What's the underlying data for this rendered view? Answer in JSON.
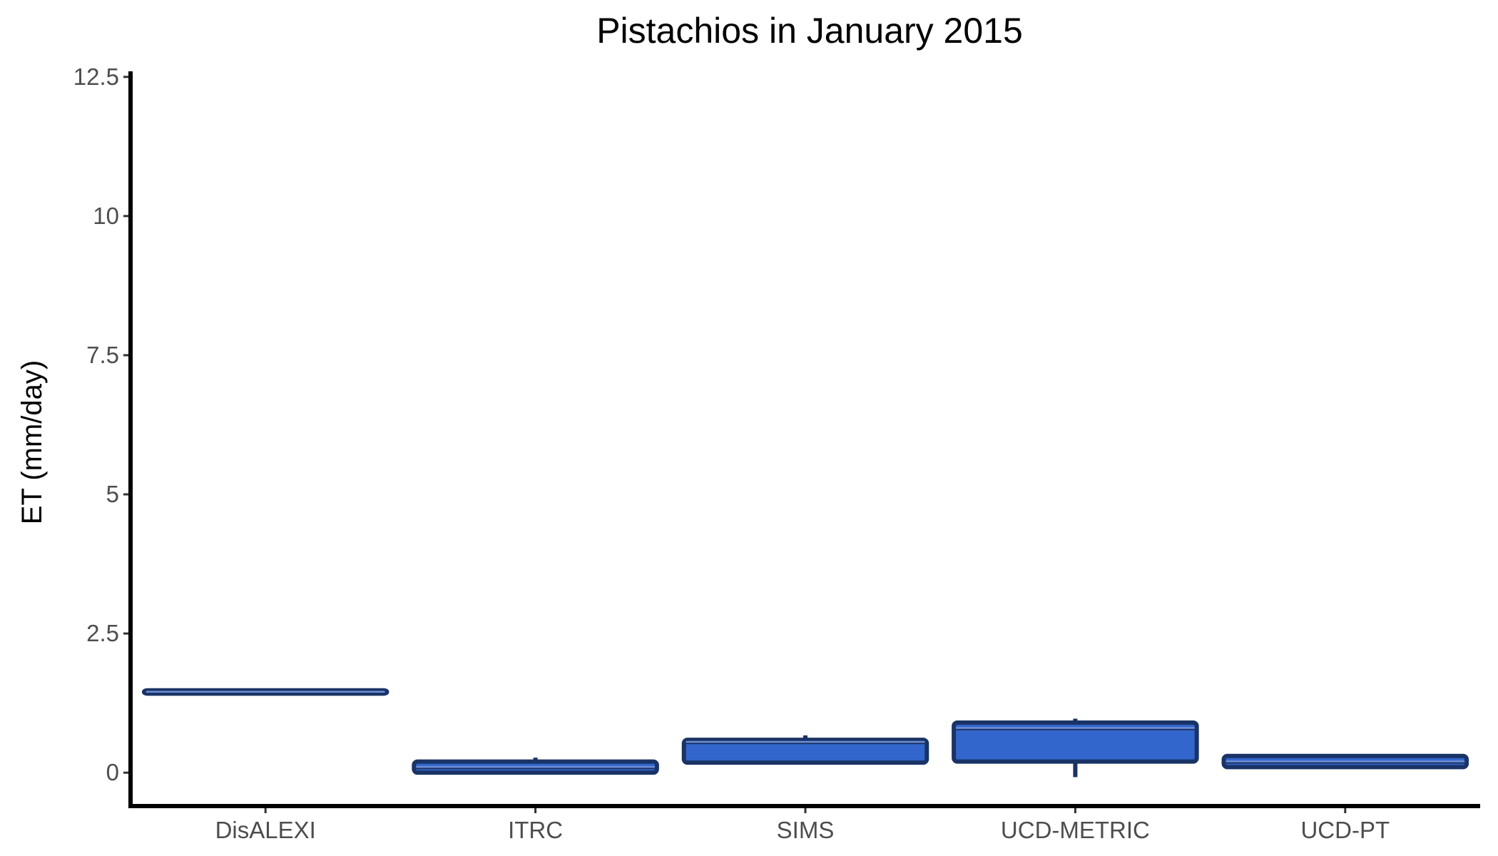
{
  "chart_data": {
    "type": "boxplot",
    "title": "Pistachios in January 2015",
    "xlabel": "",
    "ylabel": "ET (mm/day)",
    "ylim": [
      -0.6,
      12.6
    ],
    "yticks": [
      0,
      2.5,
      5,
      7.5,
      10,
      12.5
    ],
    "ytick_labels": [
      "0",
      "2.5",
      "5",
      "7.5",
      "10",
      "12.5"
    ],
    "grid": false,
    "legend": "none",
    "categories": [
      "DisALEXI",
      "ITRC",
      "SIMS",
      "UCD-METRIC",
      "UCD-PT"
    ],
    "boxes": [
      {
        "category": "DisALEXI",
        "whisker_low": 1.42,
        "q1": 1.42,
        "median": 1.45,
        "q3": 1.48,
        "whisker_high": 1.48
      },
      {
        "category": "ITRC",
        "whisker_low": 0.0,
        "q1": 0.0,
        "median": 0.1,
        "q3": 0.2,
        "whisker_high": 0.27
      },
      {
        "category": "SIMS",
        "whisker_low": 0.18,
        "q1": 0.18,
        "median": 0.55,
        "q3": 0.59,
        "whisker_high": 0.67
      },
      {
        "category": "UCD-METRIC",
        "whisker_low": -0.08,
        "q1": 0.2,
        "median": 0.8,
        "q3": 0.9,
        "whisker_high": 0.97
      },
      {
        "category": "UCD-PT",
        "whisker_low": 0.1,
        "q1": 0.1,
        "median": 0.2,
        "q3": 0.3,
        "whisker_high": 0.3
      }
    ],
    "colors": {
      "box_fill": "#3366cc",
      "box_stroke": "#1a3366"
    }
  }
}
